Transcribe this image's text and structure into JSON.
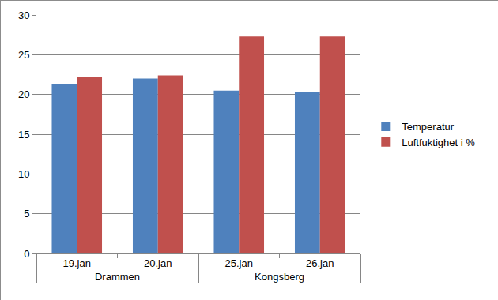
{
  "chart_data": {
    "type": "bar",
    "categories": [
      "19.jan",
      "20.jan",
      "25.jan",
      "26.jan"
    ],
    "groups": [
      "Drammen",
      "Drammen",
      "Kongsberg",
      "Kongsberg"
    ],
    "series": [
      {
        "name": "Temperatur",
        "color": "#4f81bd",
        "values": [
          21.3,
          22.0,
          20.5,
          20.3
        ]
      },
      {
        "name": "Luftfuktighet i %",
        "color": "#c0504d",
        "values": [
          22.2,
          22.4,
          27.3,
          27.3
        ]
      }
    ],
    "ylim": [
      0,
      30
    ],
    "yticks": [
      0,
      5,
      10,
      15,
      20,
      25,
      30
    ],
    "grid": true,
    "legend": "right"
  }
}
